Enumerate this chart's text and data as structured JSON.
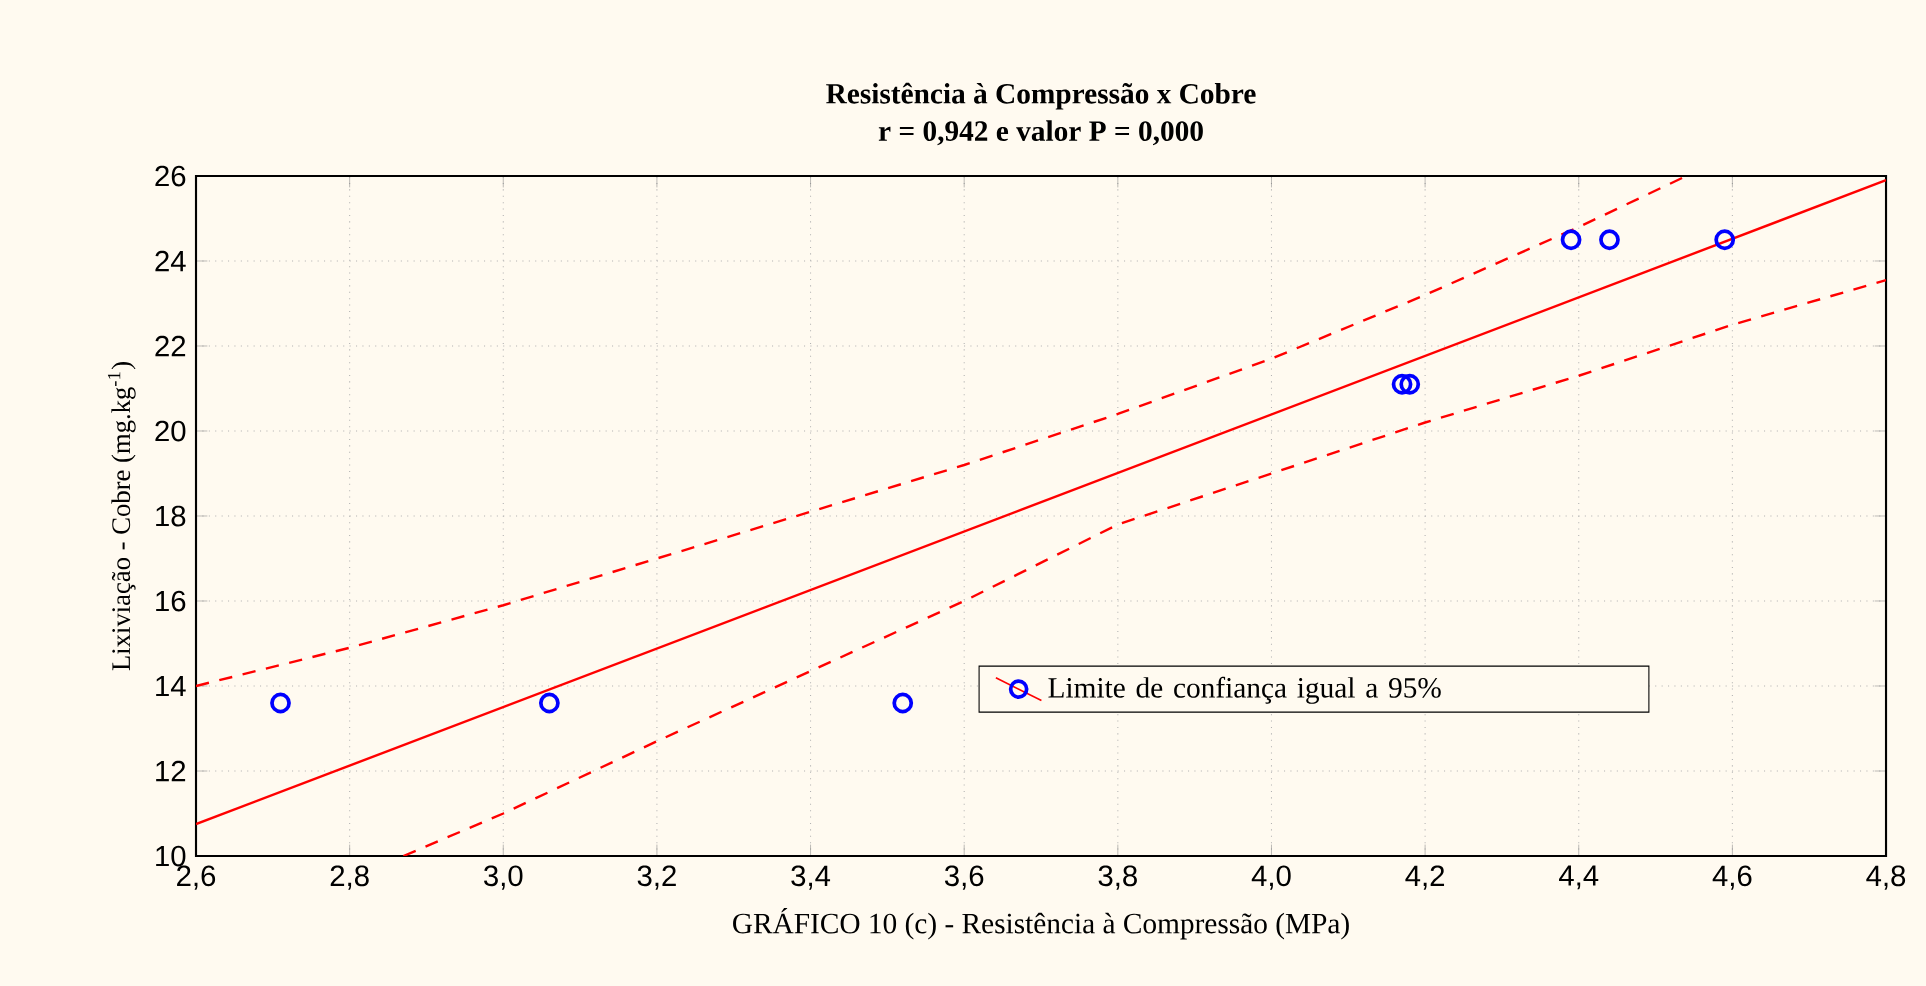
{
  "chart_data": {
    "type": "scatter",
    "title": "Resistência à Compressão x Cobre",
    "subtitle": "r = 0,942 e valor P = 0,000",
    "xlabel": "GRÁFICO 10 (c) - Resistência à Compressão (MPa)",
    "ylabel": "Lixiviação - Cobre (mg.kg$^{-1}$)",
    "xlim": [
      2.6,
      4.8
    ],
    "ylim": [
      10,
      26
    ],
    "xticks": [
      {
        "value": 2.6,
        "label": "2,6"
      },
      {
        "value": 2.8,
        "label": "2,8"
      },
      {
        "value": 3.0,
        "label": "3,0"
      },
      {
        "value": 3.2,
        "label": "3,2"
      },
      {
        "value": 3.4,
        "label": "3,4"
      },
      {
        "value": 3.6,
        "label": "3,6"
      },
      {
        "value": 3.8,
        "label": "3,8"
      },
      {
        "value": 4.0,
        "label": "4,0"
      },
      {
        "value": 4.2,
        "label": "4,2"
      },
      {
        "value": 4.4,
        "label": "4,4"
      },
      {
        "value": 4.6,
        "label": "4,6"
      },
      {
        "value": 4.8,
        "label": "4,8"
      }
    ],
    "yticks": [
      10,
      12,
      14,
      16,
      18,
      20,
      22,
      24,
      26
    ],
    "grid": true,
    "legend": "bottom right",
    "marker": "circle",
    "series": [
      {
        "name": "Limite de confiança igual a 95%",
        "color": "#0000ff",
        "x": [
          2.71,
          3.06,
          3.52,
          4.17,
          4.18,
          4.39,
          4.44,
          4.59
        ],
        "values": [
          13.6,
          13.6,
          13.6,
          21.1,
          21.1,
          24.5,
          24.5,
          24.5
        ]
      },
      {
        "type": "line",
        "color": "#ff0000",
        "line_style": "solid",
        "marker": "none",
        "x": [
          2.6,
          4.8
        ],
        "values": [
          10.75,
          25.9
        ]
      },
      {
        "type": "line",
        "color": "#ff0000",
        "line_style": "dashed",
        "marker": "none",
        "x": [
          2.6,
          2.8,
          3.0,
          3.2,
          3.4,
          3.6,
          3.8,
          4.0,
          4.2,
          4.4,
          4.54
        ],
        "values": [
          14.0,
          14.9,
          15.9,
          17.0,
          18.1,
          19.2,
          20.4,
          21.7,
          23.2,
          24.8,
          26.0
        ]
      },
      {
        "type": "line",
        "color": "#ff0000",
        "line_style": "dashed",
        "marker": "none",
        "x": [
          2.87,
          3.0,
          3.2,
          3.4,
          3.6,
          3.8,
          4.0,
          4.2,
          4.4,
          4.6,
          4.8
        ],
        "values": [
          10.0,
          11.0,
          12.7,
          14.35,
          16.0,
          17.8,
          19.0,
          20.2,
          21.3,
          22.5,
          23.55
        ]
      }
    ]
  }
}
